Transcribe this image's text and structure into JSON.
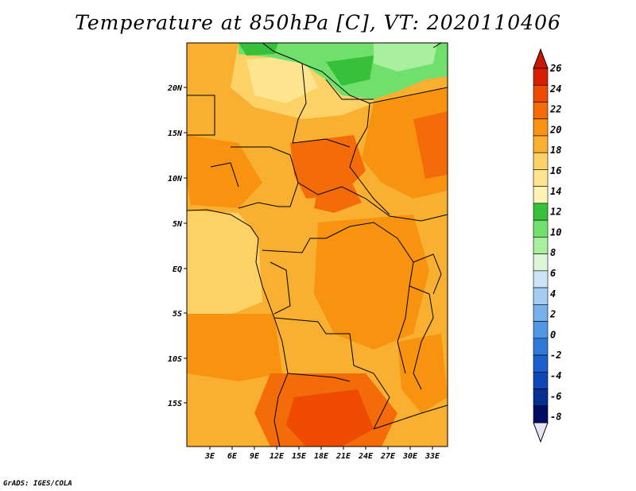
{
  "title": "Temperature at 850hPa [C], VT: 2020110406",
  "credit": "GrADS: IGES/COLA",
  "map": {
    "lat_ticks": [
      "20N",
      "15N",
      "10N",
      "5N",
      "EQ",
      "5S",
      "10S",
      "15S"
    ],
    "lon_ticks": [
      "3E",
      "6E",
      "9E",
      "12E",
      "15E",
      "18E",
      "21E",
      "24E",
      "27E",
      "30E",
      "33E"
    ]
  },
  "colorbar": {
    "labels": [
      "26",
      "24",
      "22",
      "20",
      "18",
      "16",
      "14",
      "12",
      "10",
      "8",
      "6",
      "4",
      "2",
      "0",
      "-2",
      "-4",
      "-6",
      "-8"
    ],
    "colors": [
      "#d72000",
      "#ee4b00",
      "#f46b0a",
      "#f7930f",
      "#f9b030",
      "#fcd165",
      "#fde58f",
      "#fdf3b2",
      "#37c13a",
      "#6ee06b",
      "#a8ef9e",
      "#dcf7d6",
      "#cbe3f7",
      "#a5cdf2",
      "#75b2ec",
      "#4f97e5",
      "#2f7ad8",
      "#1a5fcc",
      "#0d47b8",
      "#062d90",
      "#000b62"
    ],
    "top_color": "#c81800",
    "bottom_color": "#e4e4f6"
  }
}
